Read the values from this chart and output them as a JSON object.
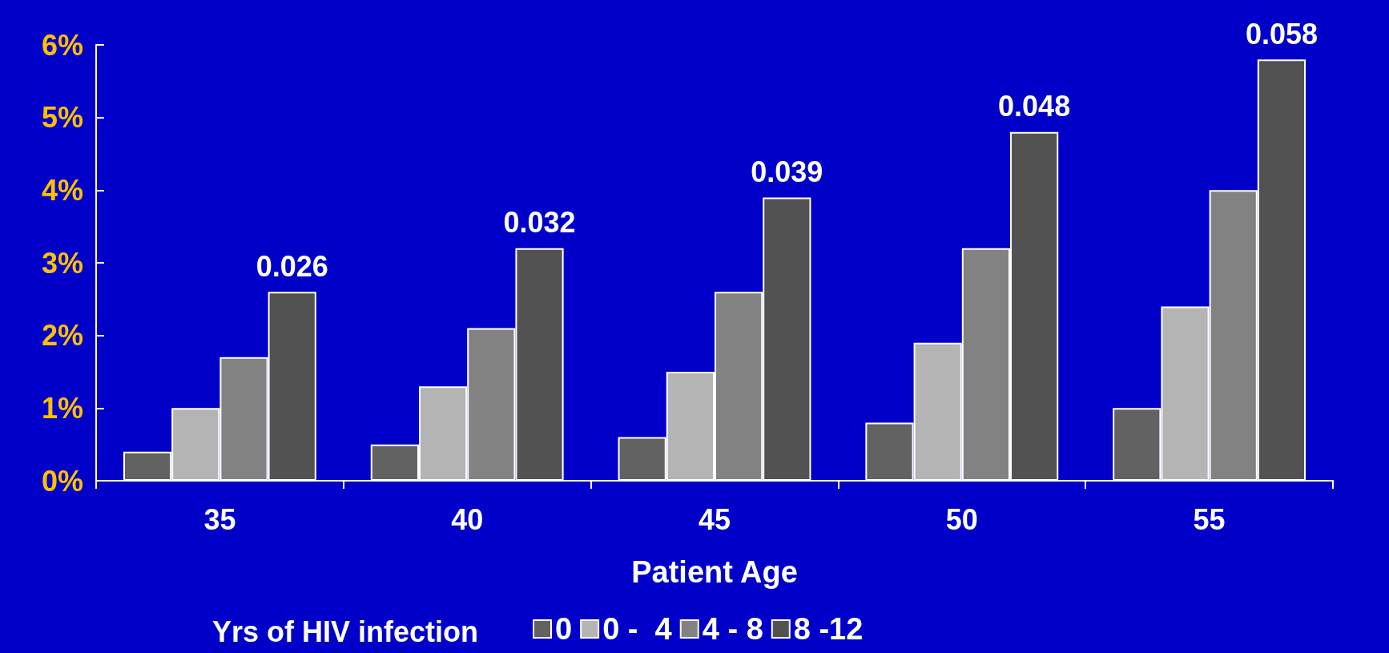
{
  "chart_data": {
    "type": "bar",
    "xlabel": "Patient Age",
    "legend_title": "Yrs of HIV infection",
    "categories": [
      "35",
      "40",
      "45",
      "50",
      "55"
    ],
    "series": [
      {
        "name": "0",
        "color": "#626262",
        "values": [
          0.004,
          0.005,
          0.006,
          0.008,
          0.01
        ]
      },
      {
        "name": "0 -  4",
        "color": "#b4b4b4",
        "values": [
          0.01,
          0.013,
          0.015,
          0.019,
          0.024
        ]
      },
      {
        "name": "4 - 8",
        "color": "#828282",
        "values": [
          0.017,
          0.021,
          0.026,
          0.032,
          0.04
        ]
      },
      {
        "name": "8 -12",
        "color": "#525252",
        "values": [
          0.026,
          0.032,
          0.039,
          0.048,
          0.058
        ],
        "value_labels": [
          "0.026",
          "0.032",
          "0.039",
          "0.048",
          "0.058"
        ]
      }
    ],
    "ylim": [
      0,
      0.06
    ],
    "yticks": [
      {
        "value": 0,
        "label": "0%"
      },
      {
        "value": 0.01,
        "label": "1%"
      },
      {
        "value": 0.02,
        "label": "2%"
      },
      {
        "value": 0.03,
        "label": "3%"
      },
      {
        "value": 0.04,
        "label": "4%"
      },
      {
        "value": 0.05,
        "label": "5%"
      },
      {
        "value": 0.06,
        "label": "6%"
      }
    ],
    "grid": false,
    "legend": "bottom"
  }
}
